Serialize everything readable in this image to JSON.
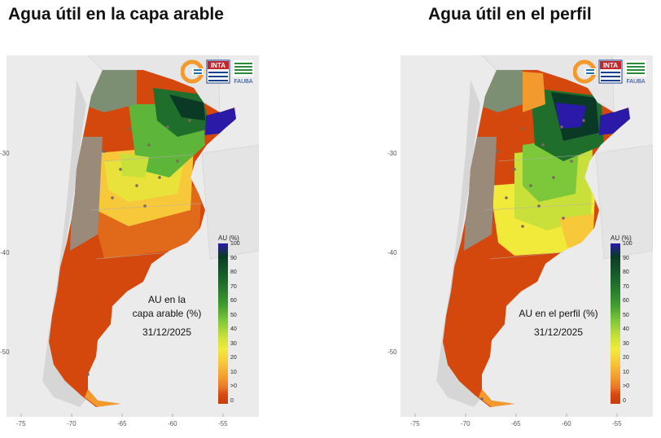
{
  "maps": [
    {
      "title": "Agua útil en la capa arable",
      "overlay_lines": [
        "AU en la",
        "capa arable (%)"
      ],
      "date": "31/12/2025",
      "wet_level": "capa"
    },
    {
      "title": "Agua útil en el perfil",
      "overlay_lines": [
        "AU en el perfil (%)"
      ],
      "date": "31/12/2025",
      "wet_level": "perfil"
    }
  ],
  "legend": {
    "title": "AU (%)",
    "ticks": [
      "100",
      "90",
      "80",
      "70",
      "60",
      "50",
      "40",
      "30",
      "20",
      "10",
      ">0",
      "0"
    ],
    "colors": [
      "#2b1aa8",
      "#0a3a26",
      "#1f6e2c",
      "#3f9b2f",
      "#7cc73a",
      "#c9e03a",
      "#f2ea3a",
      "#f7c83a",
      "#f29a2e",
      "#e8742a",
      "#d84a10",
      "#c73c0c"
    ]
  },
  "axes": {
    "x_ticks": [
      "-75",
      "-70",
      "-65",
      "-60",
      "-55"
    ],
    "y_ticks": [
      "-30",
      "-40",
      "-50"
    ]
  },
  "logos": {
    "inta_text": "INTA",
    "fauba_text": "FAUBA",
    "icons": [
      "circle-logo-icon",
      "inta-logo-icon",
      "fauba-logo-icon"
    ]
  },
  "colors": {
    "dry": "#d4480e",
    "mountain": "#9a8a7a",
    "cloud": "#7d8f72"
  }
}
